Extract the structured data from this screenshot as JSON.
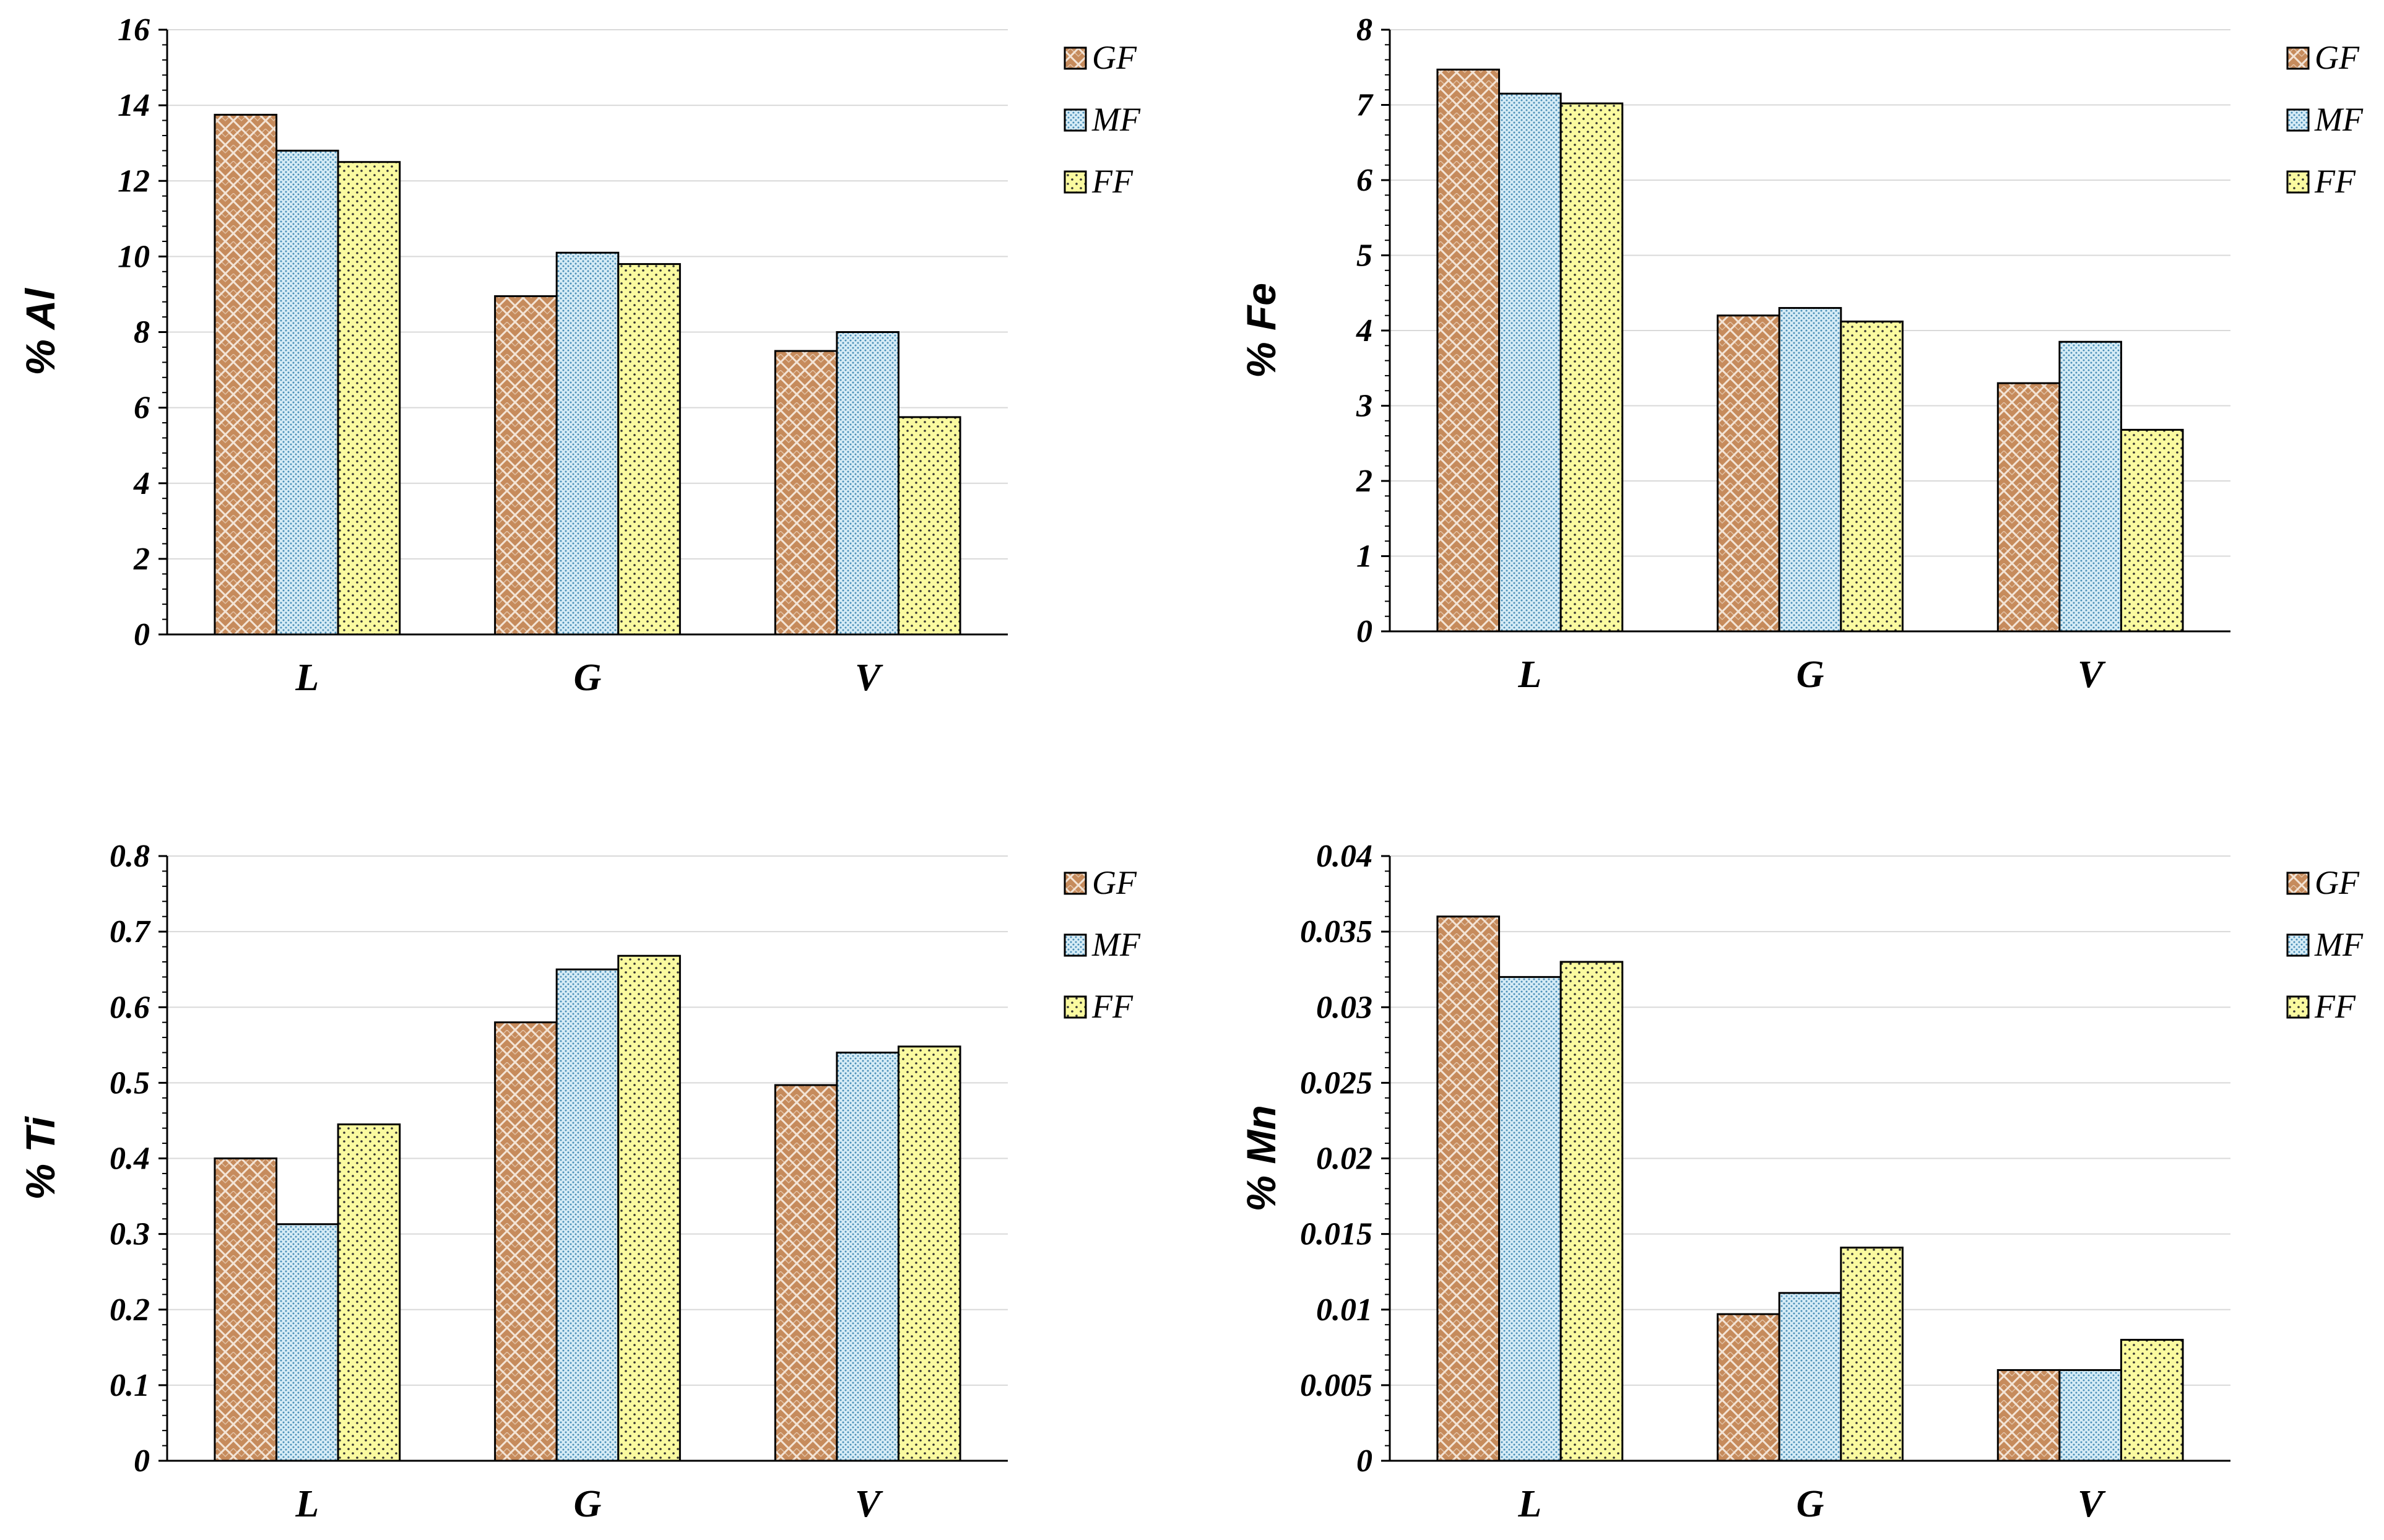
{
  "colors": {
    "gf_fill": "#c68b5c",
    "gf_line": "#ffffff",
    "mf_fill": "#d6ecf6",
    "mf_dot": "#4b8fb8",
    "ff_fill": "#fafaa0",
    "ff_dot": "#333333",
    "grid": "#d9d9d9",
    "axis": "#000000"
  },
  "chart_data": [
    {
      "type": "bar",
      "title": "",
      "xlabel": "",
      "ylabel": "% Al",
      "categories": [
        "L",
        "G",
        "V"
      ],
      "ylim": [
        0,
        16
      ],
      "yticks": [
        "0",
        "2",
        "4",
        "6",
        "8",
        "10",
        "12",
        "14",
        "16"
      ],
      "ytick_values": [
        0,
        2,
        4,
        6,
        8,
        10,
        12,
        14,
        16
      ],
      "legend": "top-right",
      "grid": true,
      "series": [
        {
          "name": "GF",
          "values": [
            13.75,
            8.95,
            7.5
          ]
        },
        {
          "name": "MF",
          "values": [
            12.8,
            10.1,
            8.0
          ]
        },
        {
          "name": "FF",
          "values": [
            12.5,
            9.8,
            5.75
          ]
        }
      ]
    },
    {
      "type": "bar",
      "title": "",
      "xlabel": "",
      "ylabel": "% Fe",
      "categories": [
        "L",
        "G",
        "V"
      ],
      "ylim": [
        0,
        8
      ],
      "yticks": [
        "0",
        "1",
        "2",
        "3",
        "4",
        "5",
        "6",
        "7",
        "8"
      ],
      "ytick_values": [
        0,
        1,
        2,
        3,
        4,
        5,
        6,
        7,
        8
      ],
      "legend": "top-right",
      "grid": true,
      "series": [
        {
          "name": "GF",
          "values": [
            7.47,
            4.2,
            3.3
          ]
        },
        {
          "name": "MF",
          "values": [
            7.15,
            4.3,
            3.85
          ]
        },
        {
          "name": "FF",
          "values": [
            7.02,
            4.12,
            2.68
          ]
        }
      ]
    },
    {
      "type": "bar",
      "title": "",
      "xlabel": "",
      "ylabel": "% Ti",
      "categories": [
        "L",
        "G",
        "V"
      ],
      "ylim": [
        0,
        0.8
      ],
      "yticks": [
        "0",
        "0.1",
        "0.2",
        "0.3",
        "0.4",
        "0.5",
        "0.6",
        "0.7",
        "0.8"
      ],
      "ytick_values": [
        0,
        0.1,
        0.2,
        0.3,
        0.4,
        0.5,
        0.6,
        0.7,
        0.8
      ],
      "legend": "top-right",
      "grid": true,
      "series": [
        {
          "name": "GF",
          "values": [
            0.4,
            0.58,
            0.497
          ]
        },
        {
          "name": "MF",
          "values": [
            0.313,
            0.65,
            0.54
          ]
        },
        {
          "name": "FF",
          "values": [
            0.445,
            0.668,
            0.548
          ]
        }
      ]
    },
    {
      "type": "bar",
      "title": "",
      "xlabel": "",
      "ylabel": "% Mn",
      "categories": [
        "L",
        "G",
        "V"
      ],
      "ylim": [
        0,
        0.04
      ],
      "yticks": [
        "0",
        "0.005",
        "0.01",
        "0.015",
        "0.02",
        "0.025",
        "0.03",
        "0.035",
        "0.04"
      ],
      "ytick_values": [
        0,
        0.005,
        0.01,
        0.015,
        0.02,
        0.025,
        0.03,
        0.035,
        0.04
      ],
      "legend": "top-right",
      "grid": true,
      "series": [
        {
          "name": "GF",
          "values": [
            0.036,
            0.0097,
            0.006
          ]
        },
        {
          "name": "MF",
          "values": [
            0.032,
            0.0111,
            0.006
          ]
        },
        {
          "name": "FF",
          "values": [
            0.033,
            0.0141,
            0.008
          ]
        }
      ]
    }
  ]
}
